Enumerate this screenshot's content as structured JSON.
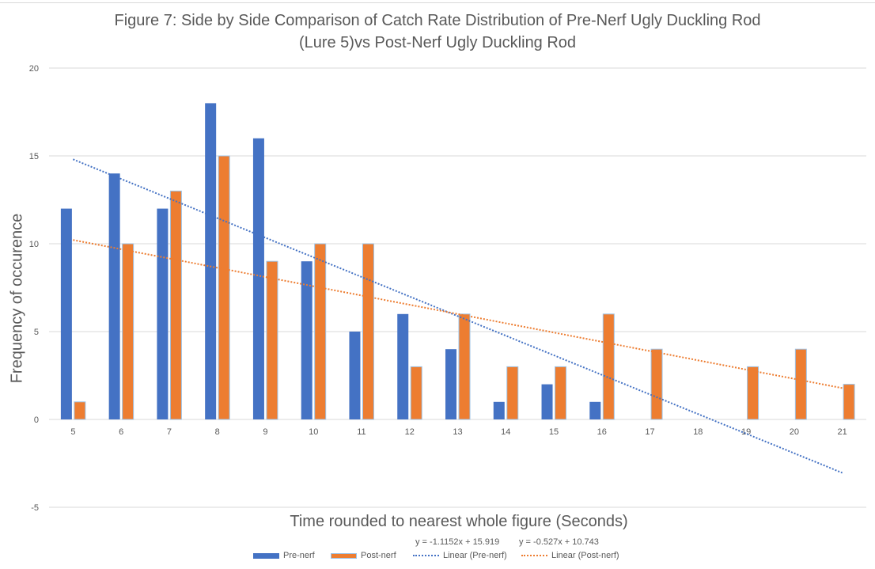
{
  "chart_data": {
    "type": "bar",
    "title_lines": [
      "Figure 7: Side by Side Comparison of Catch Rate Distribution of Pre-Nerf Ugly Duckling Rod",
      "(Lure 5)vs Post-Nerf Ugly Duckling Rod"
    ],
    "xlabel": "Time rounded to nearest whole figure (Seconds)",
    "ylabel": "Frequency of occurence",
    "categories": [
      "5",
      "6",
      "7",
      "8",
      "9",
      "10",
      "11",
      "12",
      "13",
      "14",
      "15",
      "16",
      "17",
      "18",
      "19",
      "20",
      "21"
    ],
    "series": [
      {
        "name": "Pre-nerf",
        "color": "#4472c4",
        "values": [
          12,
          14,
          12,
          18,
          16,
          9,
          5,
          6,
          4,
          1,
          2,
          1,
          0,
          0,
          0,
          0,
          0
        ]
      },
      {
        "name": "Post-nerf",
        "color": "#ed7d31",
        "values": [
          1,
          10,
          13,
          15,
          9,
          10,
          10,
          3,
          6,
          3,
          3,
          6,
          4,
          0,
          3,
          4,
          2
        ]
      }
    ],
    "trendlines": [
      {
        "name": "Linear (Pre-nerf)",
        "color": "#4472c4",
        "slope": -1.1152,
        "intercept": 15.919,
        "equation": "y = -1.1152x + 15.919"
      },
      {
        "name": "Linear (Post-nerf)",
        "color": "#ed7d31",
        "slope": -0.527,
        "intercept": 10.743,
        "equation": "y = -0.527x + 10.743"
      }
    ],
    "ylim": [
      -5,
      20
    ],
    "yticks": [
      "-5",
      "0",
      "5",
      "10",
      "15",
      "20"
    ],
    "ytick_values": [
      -5,
      0,
      5,
      10,
      15,
      20
    ],
    "grid": true,
    "legend_position": "bottom"
  }
}
